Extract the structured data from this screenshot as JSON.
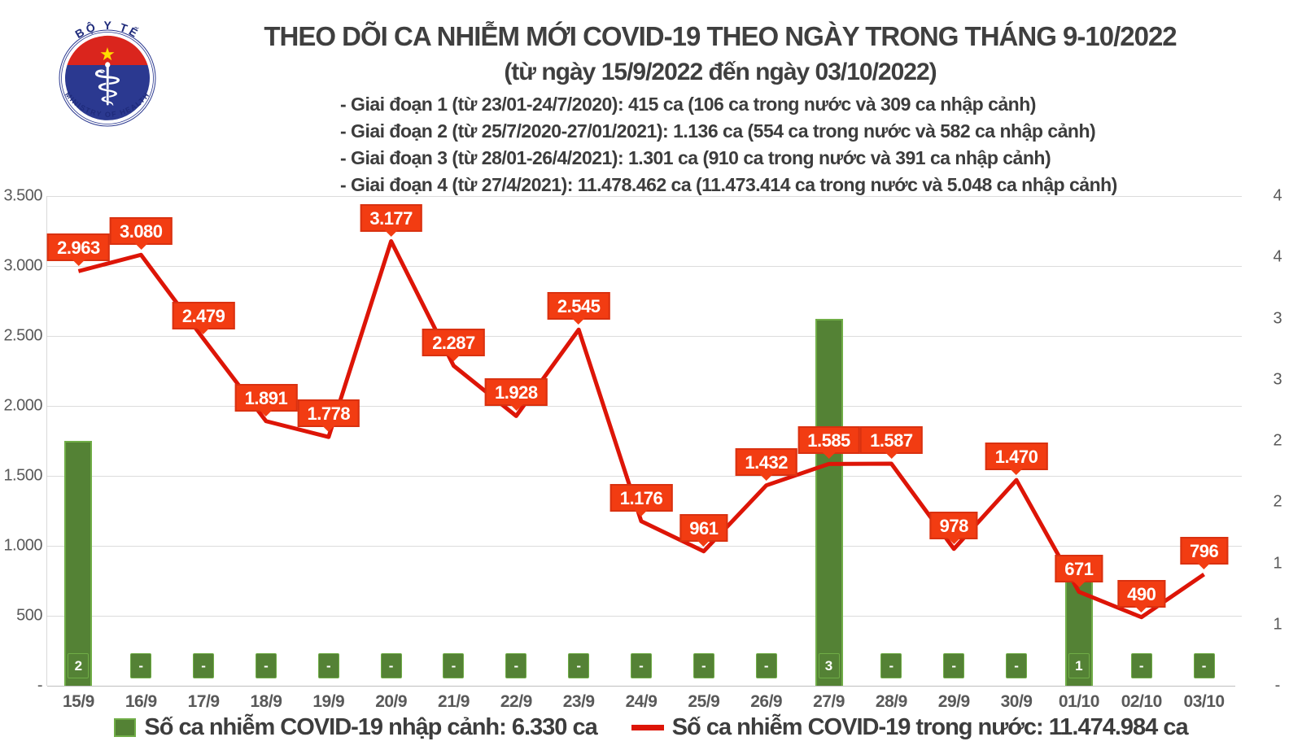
{
  "header": {
    "title": "THEO DÕI CA NHIỄM MỚI COVID-19 THEO NGÀY TRONG THÁNG 9-10/2022",
    "subtitle": "(từ ngày 15/9/2022 đến ngày 03/10/2022)",
    "phases": [
      "- Giai đoạn 1 (từ 23/01-24/7/2020): 415 ca (106 ca trong nước và 309 ca nhập cảnh)",
      "- Giai đoạn 2 (từ 25/7/2020-27/01/2021): 1.136 ca (554 ca trong nước và 582 ca nhập cảnh)",
      "- Giai đoạn 3 (từ 28/01-26/4/2021): 1.301 ca (910 ca trong nước và 391 ca nhập cảnh)",
      "- Giai đoạn 4 (từ 27/4/2021): 11.478.462 ca (11.473.414 ca trong nước và 5.048 ca nhập cảnh)"
    ],
    "logo": {
      "top_text": "BỘ Y TẾ",
      "bottom_text": "MINISTRY OF HEALTH",
      "star": "★",
      "staff_icon": "⚕"
    }
  },
  "chart_data": {
    "type": "combo-bar-line",
    "categories": [
      "15/9",
      "16/9",
      "17/9",
      "18/9",
      "19/9",
      "20/9",
      "21/9",
      "22/9",
      "23/9",
      "24/9",
      "25/9",
      "26/9",
      "27/9",
      "28/9",
      "29/9",
      "30/9",
      "01/10",
      "02/10",
      "03/10"
    ],
    "series": [
      {
        "name": "Số ca nhiễm COVID-19 nhập cảnh: 6.330 ca",
        "type": "bar",
        "axis": "right",
        "values": [
          2,
          null,
          null,
          null,
          null,
          null,
          null,
          null,
          null,
          null,
          null,
          null,
          3,
          null,
          null,
          null,
          1,
          null,
          null
        ],
        "labels": [
          "2",
          "-",
          "-",
          "-",
          "-",
          "-",
          "-",
          "-",
          "-",
          "-",
          "-",
          "-",
          "3",
          "-",
          "-",
          "-",
          "1",
          "-",
          "-"
        ]
      },
      {
        "name": "Số ca nhiễm COVID-19 trong nước: 11.474.984 ca",
        "type": "line",
        "axis": "left",
        "values": [
          2963,
          3080,
          2479,
          1891,
          1778,
          3177,
          2287,
          1928,
          2545,
          1176,
          961,
          1432,
          1585,
          1587,
          978,
          1470,
          671,
          490,
          796
        ],
        "labels": [
          "2.963",
          "3.080",
          "2.479",
          "1.891",
          "1.778",
          "3.177",
          "2.287",
          "1.928",
          "2.545",
          "1.176",
          "961",
          "1.432",
          "1.585",
          "1.587",
          "978",
          "1.470",
          "671",
          "490",
          "796"
        ]
      }
    ],
    "left_axis": {
      "min": 0,
      "max": 3500,
      "ticks": [
        "3.500",
        "3.000",
        "2.500",
        "2.000",
        "1.500",
        "1.000",
        "500",
        "-"
      ]
    },
    "right_axis": {
      "min": 0,
      "max": 4,
      "ticks": [
        "4",
        "4",
        "3",
        "3",
        "2",
        "2",
        "1",
        "1",
        "-"
      ]
    },
    "grid": true,
    "legend_position": "bottom"
  },
  "legend": [
    {
      "label": "Số ca nhiễm COVID-19 nhập cảnh: 6.330 ca",
      "marker": "bar-swatch"
    },
    {
      "label": "Số ca nhiễm COVID-19 trong nước: 11.474.984 ca",
      "marker": "line-dash"
    }
  ],
  "colors": {
    "bar_fill": "#548235",
    "bar_border": "#70ad47",
    "line": "#dd1507",
    "point_label_bg": "#f23c12",
    "point_label_border": "#d93110",
    "axis_text": "#595959",
    "grid": "#dcdcdc",
    "header_text": "#3f3f3f",
    "logo_red": "#da251d",
    "logo_blue": "#2b3990",
    "logo_star": "#ffde00"
  }
}
